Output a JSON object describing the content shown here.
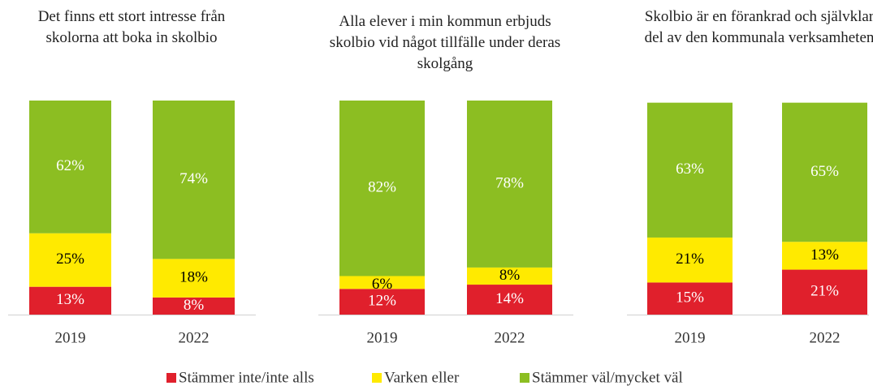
{
  "chart_data": [
    {
      "type": "stacked-bar",
      "title": "Det finns ett stort intresse från skolorna att boka in skolbio",
      "categories": [
        "2019",
        "2022"
      ],
      "series": [
        {
          "name": "Stämmer inte/inte alls",
          "color": "#e0202c",
          "values": [
            13,
            8
          ],
          "value_labels": [
            "13%",
            "8%"
          ]
        },
        {
          "name": "Varken eller",
          "color": "#ffea00",
          "values": [
            25,
            18
          ],
          "value_labels": [
            "25%",
            "18%"
          ]
        },
        {
          "name": "Stämmer väl/mycket väl",
          "color": "#8cbe22",
          "values": [
            62,
            74
          ],
          "value_labels": [
            "62%",
            "74%"
          ]
        }
      ]
    },
    {
      "type": "stacked-bar",
      "title": "Alla elever i min kommun erbjuds skolbio vid något tillfälle under deras skolgång",
      "categories": [
        "2019",
        "2022"
      ],
      "series": [
        {
          "name": "Stämmer inte/inte alls",
          "color": "#e0202c",
          "values": [
            12,
            14
          ],
          "value_labels": [
            "12%",
            "14%"
          ]
        },
        {
          "name": "Varken eller",
          "color": "#ffea00",
          "values": [
            6,
            8
          ],
          "value_labels": [
            "6%",
            "8%"
          ]
        },
        {
          "name": "Stämmer väl/mycket väl",
          "color": "#8cbe22",
          "values": [
            82,
            78
          ],
          "value_labels": [
            "82%",
            "78%"
          ]
        }
      ]
    },
    {
      "type": "stacked-bar",
      "title": "Skolbio är en förankrad och självklar del av den kommunala verksamheten",
      "categories": [
        "2019",
        "2022"
      ],
      "series": [
        {
          "name": "Stämmer inte/inte alls",
          "color": "#e0202c",
          "values": [
            15,
            21
          ],
          "value_labels": [
            "15%",
            "21%"
          ]
        },
        {
          "name": "Varken eller",
          "color": "#ffea00",
          "values": [
            21,
            13
          ],
          "value_labels": [
            "21%",
            "13%"
          ]
        },
        {
          "name": "Stämmer väl/mycket väl",
          "color": "#8cbe22",
          "values": [
            63,
            65
          ],
          "value_labels": [
            "63%",
            "65%"
          ]
        }
      ]
    }
  ]
}
